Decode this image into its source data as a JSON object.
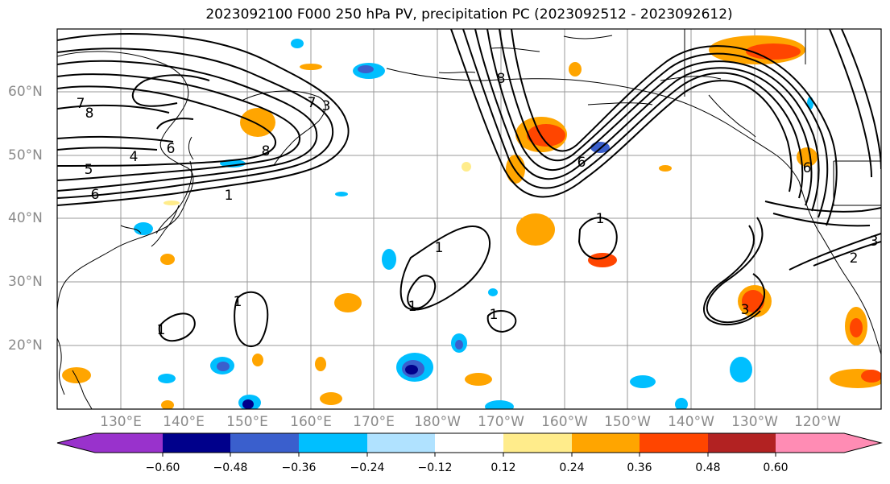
{
  "title": "2023092100 F000 250 hPa PV, precipitation PC (2023092512 - 2023092612)",
  "lat_labels": [
    "60°N",
    "50°N",
    "40°N",
    "30°N",
    "20°N"
  ],
  "lon_labels": [
    "130°E",
    "140°E",
    "150°E",
    "160°E",
    "170°E",
    "180°W",
    "170°W",
    "160°W",
    "150°W",
    "140°W",
    "130°W",
    "120°W"
  ],
  "colorbar": {
    "ticks": [
      "−0.60",
      "−0.48",
      "−0.36",
      "−0.24",
      "−0.12",
      "0.12",
      "0.24",
      "0.36",
      "0.48",
      "0.60"
    ],
    "colors": [
      "#9932cc",
      "#00008b",
      "#3a5fcd",
      "#00bfff",
      "#b0e2ff",
      "#ffffff",
      "#ffec8b",
      "#ffa500",
      "#ff4500",
      "#b22222",
      "#ff8cb4"
    ]
  },
  "contour_labels": {
    "c1": "8",
    "c2": "7",
    "c3": "6",
    "c4": "5",
    "c5": "4",
    "c6": "6",
    "c7": "3",
    "c8": "8",
    "c9": "7",
    "c10": "1",
    "c11": "1",
    "c12": "1",
    "c13": "1",
    "c14": "1",
    "c15": "1",
    "c16": "1",
    "c17": "3",
    "c18": "2",
    "c19": "3",
    "c20": "6",
    "c21": "8",
    "c22": "6"
  }
}
